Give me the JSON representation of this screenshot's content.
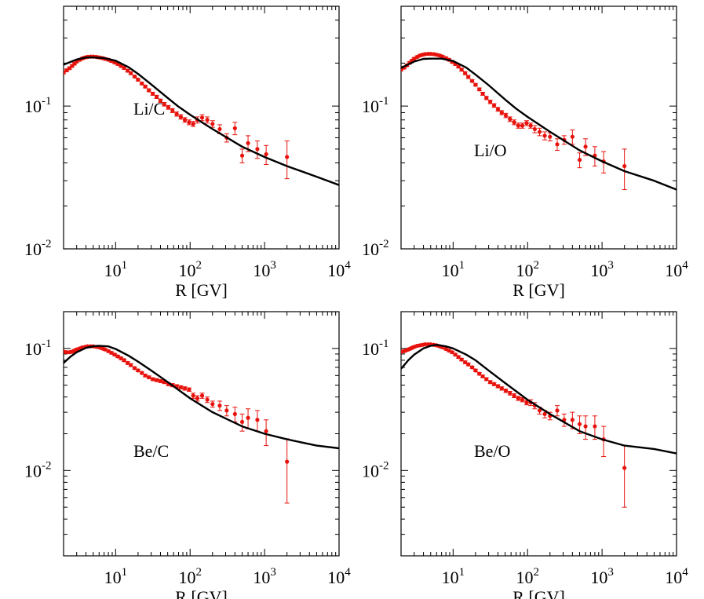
{
  "xlabel": "R [GV]",
  "colors": {
    "data": "#e8120c",
    "model": "#000000"
  },
  "chart_data": [
    {
      "type": "scatter",
      "label": "Li/C",
      "xlabel": "R [GV]",
      "xscale": "log",
      "yscale": "log",
      "xlim": [
        2,
        10000
      ],
      "ylim": [
        0.01,
        0.5
      ],
      "xticks": [
        10,
        100,
        1000,
        10000
      ],
      "yticks": [
        0.01,
        0.1
      ],
      "series": [
        {
          "kind": "points",
          "x": [
            2.0,
            2.2,
            2.4,
            2.6,
            2.8,
            3.0,
            3.3,
            3.6,
            3.9,
            4.2,
            4.6,
            5.0,
            5.5,
            6.0,
            6.6,
            7.2,
            8.0,
            8.8,
            9.7,
            10.7,
            11.8,
            13.0,
            14.5,
            16.0,
            18.0,
            20.0,
            22.5,
            25.0,
            28.0,
            31.5,
            35.5,
            40.0,
            45.0,
            51.0,
            58.0,
            66.0,
            75.0,
            85.0,
            97.0,
            110,
            125,
            145,
            170,
            200,
            250,
            310,
            400,
            500,
            600,
            800,
            1050,
            2000
          ],
          "y": [
            0.172,
            0.178,
            0.184,
            0.191,
            0.198,
            0.205,
            0.211,
            0.216,
            0.219,
            0.221,
            0.222,
            0.222,
            0.221,
            0.219,
            0.217,
            0.214,
            0.211,
            0.207,
            0.202,
            0.197,
            0.191,
            0.185,
            0.177,
            0.17,
            0.161,
            0.153,
            0.144,
            0.137,
            0.129,
            0.122,
            0.116,
            0.109,
            0.103,
            0.098,
            0.093,
            0.088,
            0.084,
            0.08,
            0.077,
            0.075,
            0.08,
            0.083,
            0.08,
            0.075,
            0.069,
            0.06,
            0.07,
            0.045,
            0.055,
            0.05,
            0.046,
            0.044
          ],
          "yerr": [
            0.004,
            0.004,
            0.004,
            0.004,
            0.004,
            0.004,
            0.004,
            0.004,
            0.004,
            0.004,
            0.004,
            0.004,
            0.004,
            0.004,
            0.004,
            0.004,
            0.004,
            0.004,
            0.004,
            0.004,
            0.004,
            0.004,
            0.004,
            0.004,
            0.003,
            0.003,
            0.003,
            0.003,
            0.003,
            0.003,
            0.003,
            0.003,
            0.003,
            0.003,
            0.003,
            0.003,
            0.003,
            0.003,
            0.003,
            0.003,
            0.004,
            0.004,
            0.004,
            0.004,
            0.005,
            0.004,
            0.007,
            0.005,
            0.007,
            0.007,
            0.007,
            0.013
          ]
        },
        {
          "kind": "model",
          "x": [
            2,
            3,
            4,
            5,
            7,
            10,
            15,
            20,
            30,
            50,
            70,
            100,
            200,
            500,
            1000,
            2000,
            5000,
            10000
          ],
          "y": [
            0.195,
            0.212,
            0.219,
            0.219,
            0.217,
            0.208,
            0.187,
            0.168,
            0.142,
            0.114,
            0.099,
            0.087,
            0.069,
            0.052,
            0.044,
            0.038,
            0.032,
            0.028
          ]
        }
      ]
    },
    {
      "type": "scatter",
      "label": "Li/O",
      "xlabel": "R [GV]",
      "xscale": "log",
      "yscale": "log",
      "xlim": [
        2,
        10000
      ],
      "ylim": [
        0.01,
        0.5
      ],
      "xticks": [
        10,
        100,
        1000,
        10000
      ],
      "yticks": [
        0.01,
        0.1
      ],
      "series": [
        {
          "kind": "points",
          "x": [
            2.0,
            2.2,
            2.4,
            2.6,
            2.8,
            3.0,
            3.3,
            3.6,
            3.9,
            4.2,
            4.6,
            5.0,
            5.5,
            6.0,
            6.6,
            7.2,
            8.0,
            8.8,
            9.7,
            10.7,
            11.8,
            13.0,
            14.5,
            16.0,
            18.0,
            20.0,
            22.5,
            25.0,
            28.0,
            31.5,
            35.5,
            40.0,
            45.0,
            51.0,
            58.0,
            66.0,
            75.0,
            85.0,
            97.0,
            110,
            125,
            145,
            170,
            200,
            250,
            310,
            400,
            500,
            600,
            800,
            1050,
            2000
          ],
          "y": [
            0.18,
            0.186,
            0.193,
            0.201,
            0.208,
            0.215,
            0.221,
            0.226,
            0.229,
            0.231,
            0.232,
            0.232,
            0.231,
            0.229,
            0.226,
            0.222,
            0.217,
            0.211,
            0.204,
            0.197,
            0.189,
            0.18,
            0.17,
            0.16,
            0.15,
            0.141,
            0.131,
            0.122,
            0.114,
            0.107,
            0.101,
            0.095,
            0.09,
            0.086,
            0.081,
            0.077,
            0.073,
            0.073,
            0.076,
            0.073,
            0.069,
            0.066,
            0.062,
            0.061,
            0.054,
            0.058,
            0.061,
            0.042,
            0.052,
            0.045,
            0.041,
            0.038
          ],
          "yerr": [
            0.004,
            0.004,
            0.004,
            0.004,
            0.004,
            0.004,
            0.004,
            0.004,
            0.004,
            0.004,
            0.004,
            0.004,
            0.004,
            0.004,
            0.004,
            0.004,
            0.004,
            0.004,
            0.004,
            0.004,
            0.004,
            0.004,
            0.004,
            0.004,
            0.003,
            0.003,
            0.003,
            0.003,
            0.003,
            0.003,
            0.003,
            0.003,
            0.003,
            0.003,
            0.003,
            0.003,
            0.003,
            0.003,
            0.003,
            0.003,
            0.004,
            0.004,
            0.004,
            0.004,
            0.005,
            0.004,
            0.007,
            0.005,
            0.007,
            0.007,
            0.007,
            0.012
          ]
        },
        {
          "kind": "model",
          "x": [
            2,
            3,
            4,
            5,
            7,
            10,
            15,
            20,
            30,
            50,
            70,
            100,
            200,
            500,
            1000,
            2000,
            5000,
            10000
          ],
          "y": [
            0.185,
            0.205,
            0.214,
            0.215,
            0.215,
            0.207,
            0.186,
            0.166,
            0.14,
            0.111,
            0.096,
            0.084,
            0.066,
            0.049,
            0.041,
            0.035,
            0.03,
            0.026
          ]
        }
      ]
    },
    {
      "type": "scatter",
      "label": "Be/C",
      "xlabel": "R [GV]",
      "xscale": "log",
      "yscale": "log",
      "xlim": [
        2,
        10000
      ],
      "ylim": [
        0.002,
        0.2
      ],
      "xticks": [
        10,
        100,
        1000,
        10000
      ],
      "yticks": [
        0.01,
        0.1
      ],
      "series": [
        {
          "kind": "points",
          "x": [
            2.0,
            2.2,
            2.4,
            2.6,
            2.8,
            3.0,
            3.3,
            3.6,
            3.9,
            4.2,
            4.6,
            5.0,
            5.5,
            6.0,
            6.6,
            7.2,
            8.0,
            8.8,
            9.7,
            10.7,
            11.8,
            13.0,
            14.5,
            16.0,
            18.0,
            20.0,
            22.5,
            25.0,
            28.0,
            31.5,
            35.5,
            40.0,
            45.0,
            51.0,
            58.0,
            66.0,
            75.0,
            85.0,
            97.0,
            110,
            125,
            145,
            170,
            200,
            250,
            310,
            400,
            500,
            600,
            800,
            1050,
            2000
          ],
          "y": [
            0.094,
            0.093,
            0.093,
            0.094,
            0.096,
            0.098,
            0.1,
            0.102,
            0.103,
            0.104,
            0.104,
            0.104,
            0.103,
            0.102,
            0.1,
            0.098,
            0.095,
            0.092,
            0.089,
            0.086,
            0.083,
            0.08,
            0.076,
            0.073,
            0.069,
            0.066,
            0.063,
            0.06,
            0.058,
            0.056,
            0.055,
            0.054,
            0.053,
            0.051,
            0.05,
            0.049,
            0.048,
            0.047,
            0.046,
            0.041,
            0.039,
            0.041,
            0.038,
            0.035,
            0.034,
            0.031,
            0.029,
            0.025,
            0.027,
            0.026,
            0.021,
            0.0118
          ],
          "yerr": [
            0.002,
            0.002,
            0.002,
            0.002,
            0.002,
            0.002,
            0.002,
            0.002,
            0.002,
            0.002,
            0.002,
            0.002,
            0.002,
            0.002,
            0.002,
            0.002,
            0.002,
            0.002,
            0.002,
            0.002,
            0.002,
            0.002,
            0.002,
            0.002,
            0.0015,
            0.0015,
            0.0015,
            0.0015,
            0.0015,
            0.0015,
            0.0015,
            0.0015,
            0.0015,
            0.0015,
            0.0015,
            0.0015,
            0.0015,
            0.0015,
            0.0015,
            0.002,
            0.002,
            0.002,
            0.002,
            0.002,
            0.003,
            0.003,
            0.004,
            0.004,
            0.005,
            0.005,
            0.005,
            0.0064
          ]
        },
        {
          "kind": "model",
          "x": [
            2,
            2.5,
            3,
            4,
            5,
            6,
            8,
            10,
            15,
            20,
            30,
            50,
            100,
            200,
            500,
            1000,
            2000,
            5000,
            10000
          ],
          "y": [
            0.076,
            0.086,
            0.093,
            0.101,
            0.104,
            0.105,
            0.104,
            0.099,
            0.087,
            0.078,
            0.066,
            0.053,
            0.039,
            0.03,
            0.023,
            0.02,
            0.018,
            0.016,
            0.0152
          ]
        }
      ]
    },
    {
      "type": "scatter",
      "label": "Be/O",
      "xlabel": "R [GV]",
      "xscale": "log",
      "yscale": "log",
      "xlim": [
        2,
        10000
      ],
      "ylim": [
        0.002,
        0.2
      ],
      "xticks": [
        10,
        100,
        1000,
        10000
      ],
      "yticks": [
        0.01,
        0.1
      ],
      "series": [
        {
          "kind": "points",
          "x": [
            2.0,
            2.2,
            2.4,
            2.6,
            2.8,
            3.0,
            3.3,
            3.6,
            3.9,
            4.2,
            4.6,
            5.0,
            5.5,
            6.0,
            6.6,
            7.2,
            8.0,
            8.8,
            9.7,
            10.7,
            11.8,
            13.0,
            14.5,
            16.0,
            18.0,
            20.0,
            22.5,
            25.0,
            28.0,
            31.5,
            35.5,
            40.0,
            45.0,
            51.0,
            58.0,
            66.0,
            75.0,
            85.0,
            97.0,
            110,
            125,
            145,
            170,
            200,
            250,
            310,
            400,
            500,
            600,
            800,
            1050,
            2000
          ],
          "y": [
            0.094,
            0.095,
            0.097,
            0.099,
            0.101,
            0.103,
            0.105,
            0.106,
            0.107,
            0.108,
            0.108,
            0.108,
            0.107,
            0.106,
            0.104,
            0.102,
            0.099,
            0.096,
            0.093,
            0.089,
            0.085,
            0.081,
            0.077,
            0.074,
            0.07,
            0.066,
            0.062,
            0.059,
            0.056,
            0.053,
            0.051,
            0.049,
            0.047,
            0.045,
            0.043,
            0.041,
            0.039,
            0.038,
            0.036,
            0.036,
            0.034,
            0.031,
            0.029,
            0.028,
            0.031,
            0.026,
            0.026,
            0.024,
            0.023,
            0.023,
            0.018,
            0.0105
          ],
          "yerr": [
            0.002,
            0.002,
            0.002,
            0.002,
            0.002,
            0.002,
            0.002,
            0.002,
            0.002,
            0.002,
            0.002,
            0.002,
            0.002,
            0.002,
            0.002,
            0.002,
            0.002,
            0.002,
            0.002,
            0.002,
            0.002,
            0.002,
            0.002,
            0.002,
            0.0015,
            0.0015,
            0.0015,
            0.0015,
            0.0015,
            0.0015,
            0.0015,
            0.0015,
            0.0015,
            0.0015,
            0.0015,
            0.0015,
            0.0015,
            0.0015,
            0.0015,
            0.002,
            0.002,
            0.002,
            0.002,
            0.002,
            0.003,
            0.003,
            0.004,
            0.004,
            0.005,
            0.005,
            0.005,
            0.0055
          ]
        },
        {
          "kind": "model",
          "x": [
            2,
            2.5,
            3,
            4,
            5,
            6,
            8,
            10,
            15,
            20,
            30,
            50,
            100,
            200,
            500,
            1000,
            2000,
            5000,
            10000
          ],
          "y": [
            0.068,
            0.08,
            0.089,
            0.1,
            0.105,
            0.107,
            0.104,
            0.1,
            0.089,
            0.08,
            0.066,
            0.052,
            0.038,
            0.029,
            0.021,
            0.018,
            0.016,
            0.015,
            0.0138
          ]
        }
      ]
    }
  ]
}
